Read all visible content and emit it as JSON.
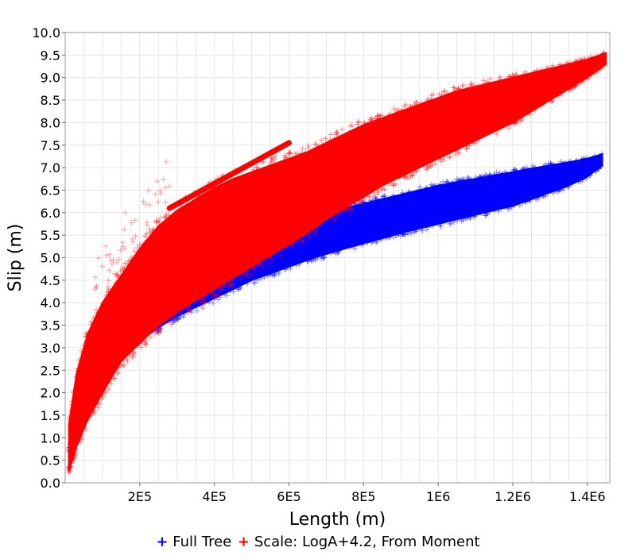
{
  "chart_data": {
    "type": "scatter",
    "xlabel": "Length (m)",
    "ylabel": "Slip (m)",
    "xlim": [
      0,
      1460000
    ],
    "ylim": [
      0,
      10
    ],
    "x_ticks": [
      {
        "value": 200000,
        "label": "2E5"
      },
      {
        "value": 400000,
        "label": "4E5"
      },
      {
        "value": 600000,
        "label": "6E5"
      },
      {
        "value": 800000,
        "label": "8E5"
      },
      {
        "value": 1000000,
        "label": "1E6"
      },
      {
        "value": 1200000,
        "label": "1.2E6"
      },
      {
        "value": 1400000,
        "label": "1.4E6"
      }
    ],
    "y_ticks": [
      {
        "value": 0.0,
        "label": "0.0"
      },
      {
        "value": 0.5,
        "label": "0.5"
      },
      {
        "value": 1.0,
        "label": "1.0"
      },
      {
        "value": 1.5,
        "label": "1.5"
      },
      {
        "value": 2.0,
        "label": "2.0"
      },
      {
        "value": 2.5,
        "label": "2.5"
      },
      {
        "value": 3.0,
        "label": "3.0"
      },
      {
        "value": 3.5,
        "label": "3.5"
      },
      {
        "value": 4.0,
        "label": "4.0"
      },
      {
        "value": 4.5,
        "label": "4.5"
      },
      {
        "value": 5.0,
        "label": "5.0"
      },
      {
        "value": 5.5,
        "label": "5.5"
      },
      {
        "value": 6.0,
        "label": "6.0"
      },
      {
        "value": 6.5,
        "label": "6.5"
      },
      {
        "value": 7.0,
        "label": "7.0"
      },
      {
        "value": 7.5,
        "label": "7.5"
      },
      {
        "value": 8.0,
        "label": "8.0"
      },
      {
        "value": 8.5,
        "label": "8.5"
      },
      {
        "value": 9.0,
        "label": "9.0"
      },
      {
        "value": 9.5,
        "label": "9.5"
      },
      {
        "value": 10.0,
        "label": "10.0"
      }
    ],
    "grid": true,
    "legend_position": "bottom",
    "marker": "+",
    "series": [
      {
        "name": "Full Tree",
        "color": "#0000ff",
        "x": [
          10000,
          30000,
          60000,
          100000,
          150000,
          200000,
          250000,
          300000,
          350000,
          400000,
          450000,
          500000,
          550000,
          600000,
          650000,
          700000,
          750000,
          800000,
          850000,
          900000,
          950000,
          1000000,
          1050000,
          1100000,
          1150000,
          1200000,
          1250000,
          1300000,
          1350000,
          1400000,
          1440000
        ],
        "y_low": [
          0.3,
          0.9,
          1.5,
          2.2,
          2.75,
          3.15,
          3.45,
          3.7,
          3.9,
          4.1,
          4.3,
          4.5,
          4.65,
          4.8,
          4.95,
          5.08,
          5.2,
          5.32,
          5.43,
          5.55,
          5.65,
          5.75,
          5.85,
          5.95,
          6.05,
          6.15,
          6.3,
          6.45,
          6.6,
          6.8,
          7.05
        ],
        "y_high": [
          0.7,
          1.6,
          2.3,
          3.0,
          3.6,
          4.05,
          4.45,
          4.8,
          5.1,
          5.3,
          5.45,
          5.6,
          5.7,
          5.8,
          5.92,
          6.02,
          6.1,
          6.2,
          6.3,
          6.4,
          6.5,
          6.6,
          6.68,
          6.75,
          6.83,
          6.9,
          6.98,
          7.05,
          7.12,
          7.2,
          7.3
        ]
      },
      {
        "name": "Scale: LogA+4.2, From Moment",
        "color": "#ff0000",
        "x": [
          10000,
          30000,
          60000,
          100000,
          150000,
          200000,
          250000,
          300000,
          350000,
          400000,
          450000,
          500000,
          550000,
          600000,
          650000,
          700000,
          750000,
          800000,
          850000,
          900000,
          950000,
          1000000,
          1050000,
          1100000,
          1150000,
          1200000,
          1250000,
          1300000,
          1350000,
          1400000,
          1450000
        ],
        "y_low": [
          0.25,
          0.8,
          1.4,
          2.0,
          2.7,
          3.1,
          3.5,
          3.8,
          4.05,
          4.3,
          4.55,
          4.8,
          5.05,
          5.3,
          5.55,
          5.85,
          6.1,
          6.35,
          6.6,
          6.8,
          7.0,
          7.2,
          7.4,
          7.6,
          7.8,
          8.0,
          8.25,
          8.5,
          8.75,
          9.0,
          9.3
        ],
        "y_high": [
          1.3,
          2.4,
          3.3,
          4.0,
          4.6,
          5.2,
          5.7,
          6.05,
          6.3,
          6.55,
          6.75,
          6.9,
          7.05,
          7.2,
          7.35,
          7.55,
          7.75,
          7.95,
          8.1,
          8.25,
          8.4,
          8.55,
          8.7,
          8.8,
          8.9,
          9.0,
          9.1,
          9.2,
          9.3,
          9.4,
          9.55
        ]
      }
    ],
    "annotations": [
      {
        "series": "Scale: LogA+4.2, From Moment",
        "note": "narrow streak",
        "x": [
          280000,
          600000
        ],
        "y": [
          6.1,
          7.55
        ]
      }
    ]
  },
  "legend": {
    "items": [
      {
        "marker": "+",
        "label": "Full Tree",
        "color": "#0000ff"
      },
      {
        "marker": "+",
        "label": "Scale: LogA+4.2, From Moment",
        "color": "#ff0000"
      }
    ]
  }
}
